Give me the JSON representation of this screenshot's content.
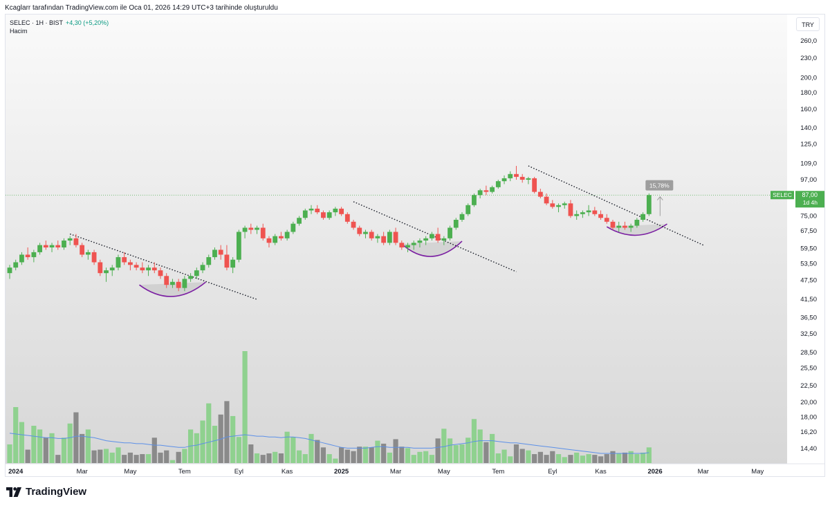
{
  "header": {
    "caption": "Kcaglarr tarafından TradingView.com ile Oca 01, 2026 14:29 UTC+3 tarihinde oluşturuldu"
  },
  "legend": {
    "symbol_line": "SELEC · 1H · BIST",
    "change": "+4,30 (+5,20%)",
    "volume_label": "Hacim"
  },
  "currency": "TRY",
  "brand": {
    "name": "TradingView",
    "logo_icon": "tradingview-logo-icon"
  },
  "colors": {
    "up": "#4caf50",
    "down": "#ef5350",
    "vol_up": "#8fd18f",
    "vol_down": "#8a8a8a",
    "ma": "#5b8fe8",
    "cup": "#7b1fa2",
    "price_line": "#4caf50"
  },
  "chart_data": {
    "type": "candlestick",
    "scale": "log",
    "y_ticks": [
      "260,0",
      "230,0",
      "200,0",
      "180,0",
      "160,0",
      "140,0",
      "125,0",
      "109,0",
      "97,00",
      "75,00",
      "67,50",
      "59,50",
      "53,50",
      "47,50",
      "41,50",
      "36,50",
      "32,50",
      "28,50",
      "25,50",
      "22,50",
      "20,00",
      "18,00",
      "16,20",
      "14,40"
    ],
    "x_ticks": [
      {
        "label": "2024",
        "bar": 1,
        "bold": true
      },
      {
        "label": "Mar",
        "bar": 12
      },
      {
        "label": "May",
        "bar": 20
      },
      {
        "label": "Tem",
        "bar": 29
      },
      {
        "label": "Eyl",
        "bar": 38
      },
      {
        "label": "Kas",
        "bar": 46
      },
      {
        "label": "2025",
        "bar": 55,
        "bold": true
      },
      {
        "label": "Mar",
        "bar": 64
      },
      {
        "label": "May",
        "bar": 72
      },
      {
        "label": "Tem",
        "bar": 81
      },
      {
        "label": "Eyl",
        "bar": 90
      },
      {
        "label": "Kas",
        "bar": 98
      },
      {
        "label": "2026",
        "bar": 107,
        "bold": true
      },
      {
        "label": "Mar",
        "bar": 115
      },
      {
        "label": "May",
        "bar": 124
      }
    ],
    "candles": [
      [
        50,
        53,
        48,
        52
      ],
      [
        52,
        55,
        51,
        54
      ],
      [
        54,
        58,
        53,
        57
      ],
      [
        57,
        60,
        55,
        56
      ],
      [
        56,
        59,
        54,
        58
      ],
      [
        58,
        62,
        57,
        61
      ],
      [
        61,
        63,
        59,
        60
      ],
      [
        60,
        62,
        58,
        61
      ],
      [
        61,
        63,
        59,
        60
      ],
      [
        60,
        64,
        59,
        63
      ],
      [
        63,
        65,
        61,
        64
      ],
      [
        64,
        66,
        60,
        61
      ],
      [
        61,
        62,
        56,
        57
      ],
      [
        57,
        59,
        55,
        58
      ],
      [
        58,
        59,
        53,
        54
      ],
      [
        54,
        55,
        49,
        50
      ],
      [
        50,
        52,
        47,
        51
      ],
      [
        51,
        53,
        49,
        52
      ],
      [
        52,
        57,
        51,
        56
      ],
      [
        56,
        58,
        53,
        54
      ],
      [
        54,
        55,
        51,
        53
      ],
      [
        53,
        54,
        51,
        52
      ],
      [
        52,
        54,
        50,
        51
      ],
      [
        51,
        53,
        49,
        52
      ],
      [
        52,
        54,
        50,
        51
      ],
      [
        51,
        52,
        48,
        49
      ],
      [
        49,
        50,
        45,
        46
      ],
      [
        46,
        48,
        45,
        47
      ],
      [
        47,
        48,
        44,
        45
      ],
      [
        45,
        49,
        44,
        48
      ],
      [
        48,
        50,
        47,
        49
      ],
      [
        49,
        52,
        48,
        51
      ],
      [
        51,
        54,
        50,
        53
      ],
      [
        53,
        57,
        52,
        56
      ],
      [
        56,
        60,
        55,
        59
      ],
      [
        59,
        61,
        55,
        57
      ],
      [
        57,
        61,
        51,
        52
      ],
      [
        52,
        56,
        50,
        55
      ],
      [
        55,
        68,
        54,
        67
      ],
      [
        67,
        70,
        64,
        69
      ],
      [
        69,
        71,
        66,
        68
      ],
      [
        68,
        70,
        66,
        69
      ],
      [
        69,
        71,
        63,
        64
      ],
      [
        64,
        65,
        60,
        62
      ],
      [
        62,
        66,
        61,
        65
      ],
      [
        65,
        67,
        63,
        64
      ],
      [
        64,
        68,
        63,
        67
      ],
      [
        67,
        72,
        66,
        71
      ],
      [
        71,
        75,
        70,
        74
      ],
      [
        74,
        79,
        73,
        78
      ],
      [
        78,
        81,
        76,
        79
      ],
      [
        79,
        81,
        76,
        77
      ],
      [
        77,
        78,
        73,
        74
      ],
      [
        74,
        78,
        73,
        77
      ],
      [
        77,
        80,
        75,
        79
      ],
      [
        79,
        80,
        75,
        76
      ],
      [
        76,
        77,
        71,
        72
      ],
      [
        72,
        73,
        68,
        69
      ],
      [
        69,
        70,
        65,
        66
      ],
      [
        66,
        68,
        64,
        67
      ],
      [
        67,
        68,
        63,
        64
      ],
      [
        64,
        66,
        62,
        65
      ],
      [
        65,
        67,
        61,
        62
      ],
      [
        62,
        68,
        61,
        67
      ],
      [
        67,
        69,
        61,
        62
      ],
      [
        62,
        63,
        59,
        60
      ],
      [
        60,
        62,
        58,
        61
      ],
      [
        61,
        63,
        59,
        62
      ],
      [
        62,
        64,
        60,
        63
      ],
      [
        63,
        65,
        61,
        64
      ],
      [
        64,
        67,
        63,
        66
      ],
      [
        66,
        69,
        62,
        63
      ],
      [
        63,
        65,
        61,
        64
      ],
      [
        64,
        70,
        63,
        69
      ],
      [
        69,
        74,
        68,
        73
      ],
      [
        73,
        77,
        72,
        76
      ],
      [
        76,
        82,
        75,
        81
      ],
      [
        81,
        88,
        80,
        87
      ],
      [
        87,
        91,
        85,
        90
      ],
      [
        90,
        93,
        87,
        89
      ],
      [
        89,
        93,
        88,
        92
      ],
      [
        92,
        97,
        91,
        96
      ],
      [
        96,
        100,
        94,
        98
      ],
      [
        98,
        103,
        96,
        101
      ],
      [
        101,
        107,
        97,
        99
      ],
      [
        99,
        101,
        95,
        97
      ],
      [
        97,
        99,
        94,
        98
      ],
      [
        98,
        99,
        88,
        89
      ],
      [
        89,
        91,
        85,
        86
      ],
      [
        86,
        88,
        81,
        82
      ],
      [
        82,
        84,
        79,
        80
      ],
      [
        80,
        82,
        77,
        81
      ],
      [
        81,
        83,
        79,
        82
      ],
      [
        82,
        84,
        74,
        75
      ],
      [
        75,
        78,
        73,
        76
      ],
      [
        76,
        78,
        74,
        77
      ],
      [
        77,
        81,
        75,
        78
      ],
      [
        78,
        80,
        75,
        76
      ],
      [
        76,
        78,
        73,
        74
      ],
      [
        74,
        76,
        71,
        72
      ],
      [
        72,
        73,
        68,
        69
      ],
      [
        69,
        72,
        67,
        70
      ],
      [
        70,
        72,
        68,
        69
      ],
      [
        69,
        71,
        67,
        70
      ],
      [
        70,
        74,
        69,
        73
      ],
      [
        73,
        77,
        72,
        76
      ],
      [
        76,
        88,
        75,
        87
      ]
    ],
    "volume": [
      16.5,
      21.5,
      19.5,
      15.8,
      19.0,
      18.5,
      17.4,
      18.0,
      15.1,
      17.4,
      19.3,
      20.8,
      17.9,
      18.5,
      15.7,
      15.8,
      15.9,
      15.4,
      16.1,
      15.1,
      15.4,
      15.1,
      15.2,
      15.2,
      17.4,
      15.4,
      15.7,
      14.4,
      15.5,
      15.9,
      18.5,
      18.0,
      19.7,
      22.0,
      19.0,
      20.5,
      22.3,
      20.3,
      17.5,
      29.0,
      16.5,
      15.3,
      15.1,
      15.3,
      15.5,
      15.3,
      18.2,
      17.5,
      15.7,
      15.2,
      17.9,
      17.1,
      16.1,
      15.2,
      14.6,
      16.1,
      15.8,
      15.6,
      16.2,
      16.2,
      16.1,
      17.0,
      16.6,
      15.4,
      17.2,
      16.2,
      16.0,
      15.1,
      15.5,
      15.6,
      15.1,
      17.3,
      18.6,
      17.3,
      16.4,
      16.5,
      17.4,
      19.9,
      18.5,
      16.8,
      17.9,
      15.3,
      15.8,
      14.9,
      16.5,
      15.9,
      15.7,
      15.2,
      15.5,
      15.1,
      15.6,
      15.2,
      14.8,
      15.1,
      15.4,
      15.0,
      15.2,
      15.1,
      14.9,
      15.2,
      15.6,
      15.3,
      15.4,
      15.6,
      15.2,
      15.4,
      16.1
    ],
    "vol_ma": [
      18.0,
      17.9,
      17.8,
      17.7,
      17.6,
      17.5,
      17.4,
      17.4,
      17.3,
      17.3,
      17.4,
      17.6,
      17.6,
      17.5,
      17.4,
      17.2,
      17.0,
      16.9,
      16.8,
      16.7,
      16.7,
      16.6,
      16.6,
      16.5,
      16.4,
      16.4,
      16.3,
      16.2,
      16.1,
      16.1,
      16.3,
      16.4,
      16.6,
      16.8,
      17.0,
      17.2,
      17.5,
      17.6,
      17.7,
      17.8,
      17.7,
      17.6,
      17.6,
      17.5,
      17.5,
      17.4,
      17.5,
      17.5,
      17.4,
      17.3,
      17.1,
      16.9,
      16.7,
      16.5,
      16.3,
      16.1,
      16.0,
      16.0,
      16.0,
      16.0,
      16.1,
      16.2,
      16.2,
      16.1,
      16.1,
      16.1,
      16.1,
      16.0,
      16.0,
      16.0,
      16.0,
      16.1,
      16.2,
      16.4,
      16.5,
      16.6,
      16.7,
      16.9,
      17.0,
      17.0,
      17.0,
      16.9,
      16.8,
      16.7,
      16.7,
      16.6,
      16.5,
      16.4,
      16.3,
      16.2,
      16.1,
      16.0,
      15.9,
      15.8,
      15.7,
      15.6,
      15.5,
      15.4,
      15.3,
      15.3,
      15.3,
      15.3,
      15.3,
      15.3,
      15.3,
      15.3,
      15.4
    ],
    "current_price": {
      "symbol": "SELEC",
      "price": "87,00",
      "countdown": "1d 4h",
      "value": 87
    },
    "measure_label": "15,78%",
    "annotations": {
      "trendlines": [
        {
          "from": [
            10,
            66
          ],
          "to": [
            41,
            41.5
          ]
        },
        {
          "from": [
            57,
            83
          ],
          "to": [
            84,
            50.5
          ]
        },
        {
          "from": [
            86,
            107
          ],
          "to": [
            115,
            61
          ]
        }
      ],
      "cups": [
        {
          "center": 27,
          "top": 46,
          "bottom": 42.5,
          "halfwidth": 5.5
        },
        {
          "center": 70,
          "top": 61.5,
          "bottom": 56.5,
          "halfwidth": 5
        },
        {
          "center": 104,
          "top": 69.5,
          "bottom": 65.5,
          "halfwidth": 5
        }
      ]
    }
  }
}
